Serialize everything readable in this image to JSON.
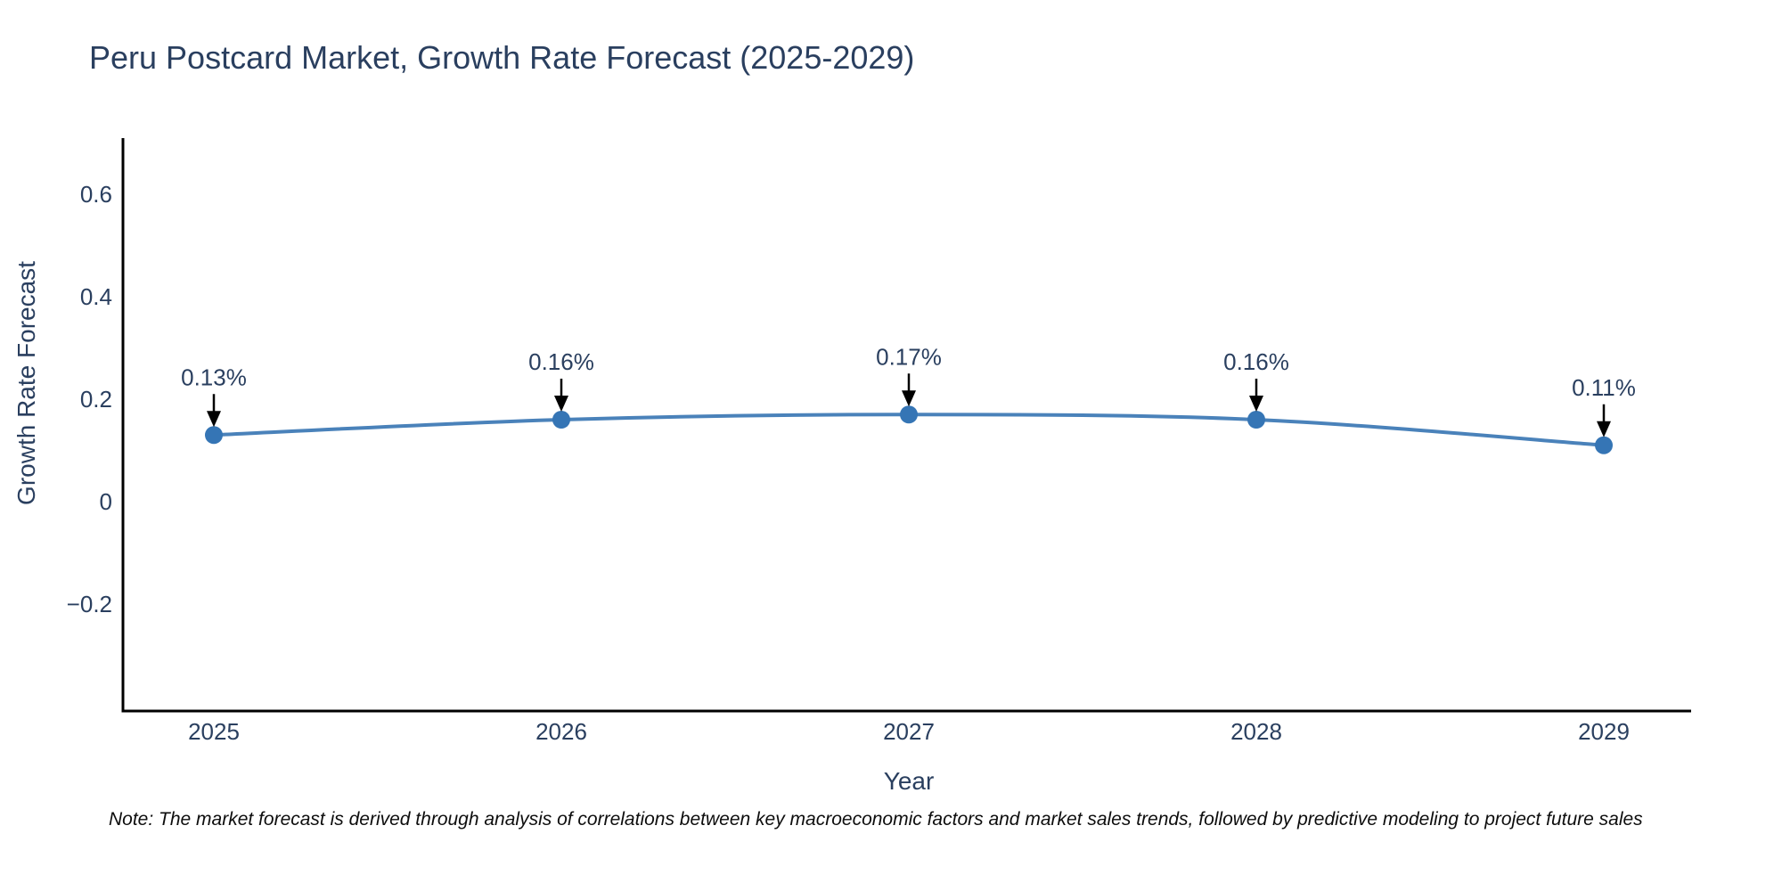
{
  "title": "Peru Postcard Market, Growth Rate Forecast (2025-2029)",
  "note": "Note: The market forecast is derived through analysis of correlations between key macroeconomic factors and market sales trends, followed by predictive modeling to project future sales",
  "chart_data": {
    "type": "line",
    "title": "Peru Postcard Market, Growth Rate Forecast (2025-2029)",
    "xlabel": "Year",
    "ylabel": "Growth Rate Forecast",
    "x": [
      2025,
      2026,
      2027,
      2028,
      2029
    ],
    "series": [
      {
        "name": "Growth Rate Forecast",
        "values": [
          0.13,
          0.16,
          0.17,
          0.16,
          0.11
        ],
        "point_labels": [
          "0.13%",
          "0.16%",
          "0.17%",
          "0.16%",
          "0.11%"
        ]
      }
    ],
    "yticks": [
      {
        "value": 0.6,
        "label": "0.6"
      },
      {
        "value": 0.4,
        "label": "0.4"
      },
      {
        "value": 0.2,
        "label": "0.2"
      },
      {
        "value": 0,
        "label": "0"
      },
      {
        "value": -0.2,
        "label": "−0.2"
      }
    ],
    "ylim": [
      -0.41,
      0.71
    ],
    "xlim": [
      2024.7,
      2029.3
    ],
    "grid": false,
    "legend": false,
    "annotations_style": "value label above point with downward black arrow",
    "colors": {
      "line": "#4a82ba",
      "marker": "#3575b5",
      "annotation_arrow": "#000000",
      "text": "#2a3f5f",
      "axis": "#000000",
      "note_text": "#0d0d0d",
      "background": "#ffffff"
    }
  }
}
